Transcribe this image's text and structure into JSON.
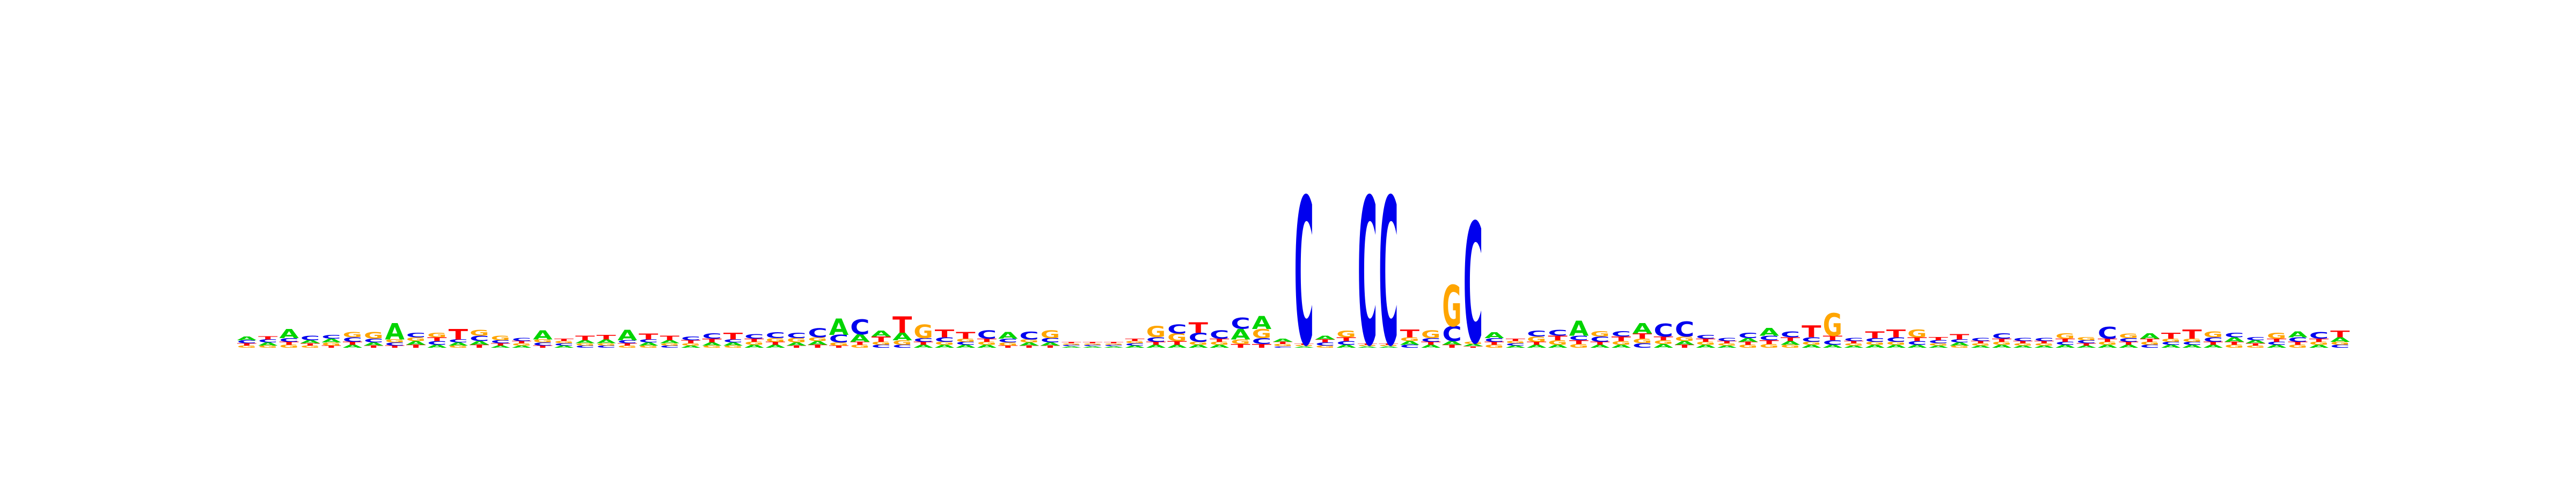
{
  "chart_data": {
    "type": "sequence-logo",
    "title": "",
    "xlabel": "",
    "ylabel": "",
    "alphabet": [
      "A",
      "C",
      "G",
      "T"
    ],
    "colors": {
      "A": "#00d400",
      "C": "#0000ee",
      "G": "#ffa500",
      "T": "#ff0000"
    },
    "ylim": [
      0,
      2
    ],
    "grid": false,
    "legend": "none",
    "max_stack_height_bits": 2.0,
    "positions": [
      {
        "A": 0.05,
        "C": 0.04,
        "G": 0.03,
        "T": 0.03
      },
      {
        "A": 0.04,
        "C": 0.04,
        "G": 0.03,
        "T": 0.04
      },
      {
        "A": 0.12,
        "C": 0.05,
        "G": 0.04,
        "T": 0.04
      },
      {
        "A": 0.04,
        "C": 0.06,
        "G": 0.03,
        "T": 0.03
      },
      {
        "A": 0.05,
        "C": 0.05,
        "G": 0.04,
        "T": 0.03
      },
      {
        "A": 0.04,
        "C": 0.06,
        "G": 0.07,
        "T": 0.04
      },
      {
        "A": 0.04,
        "C": 0.05,
        "G": 0.09,
        "T": 0.03
      },
      {
        "A": 0.22,
        "C": 0.04,
        "G": 0.04,
        "T": 0.03
      },
      {
        "A": 0.05,
        "C": 0.06,
        "G": 0.05,
        "T": 0.04
      },
      {
        "A": 0.04,
        "C": 0.05,
        "G": 0.06,
        "T": 0.05
      },
      {
        "A": 0.04,
        "C": 0.04,
        "G": 0.03,
        "T": 0.14
      },
      {
        "A": 0.05,
        "C": 0.07,
        "G": 0.08,
        "T": 0.04
      },
      {
        "A": 0.03,
        "C": 0.04,
        "G": 0.06,
        "T": 0.03
      },
      {
        "A": 0.03,
        "C": 0.04,
        "G": 0.03,
        "T": 0.03
      },
      {
        "A": 0.12,
        "C": 0.04,
        "G": 0.04,
        "T": 0.03
      },
      {
        "A": 0.03,
        "C": 0.03,
        "G": 0.03,
        "T": 0.03
      },
      {
        "A": 0.04,
        "C": 0.03,
        "G": 0.03,
        "T": 0.06
      },
      {
        "A": 0.05,
        "C": 0.03,
        "G": 0.03,
        "T": 0.06
      },
      {
        "A": 0.14,
        "C": 0.04,
        "G": 0.03,
        "T": 0.03
      },
      {
        "A": 0.04,
        "C": 0.04,
        "G": 0.03,
        "T": 0.08
      },
      {
        "A": 0.04,
        "C": 0.03,
        "G": 0.03,
        "T": 0.06
      },
      {
        "A": 0.03,
        "C": 0.05,
        "G": 0.03,
        "T": 0.04
      },
      {
        "A": 0.04,
        "C": 0.07,
        "G": 0.03,
        "T": 0.05
      },
      {
        "A": 0.04,
        "C": 0.04,
        "G": 0.03,
        "T": 0.09
      },
      {
        "A": 0.04,
        "C": 0.06,
        "G": 0.04,
        "T": 0.04
      },
      {
        "A": 0.04,
        "C": 0.08,
        "G": 0.05,
        "T": 0.04
      },
      {
        "A": 0.04,
        "C": 0.07,
        "G": 0.06,
        "T": 0.03
      },
      {
        "A": 0.05,
        "C": 0.12,
        "G": 0.05,
        "T": 0.04
      },
      {
        "A": 0.22,
        "C": 0.1,
        "G": 0.04,
        "T": 0.03
      },
      {
        "A": 0.1,
        "C": 0.2,
        "G": 0.04,
        "T": 0.04
      },
      {
        "A": 0.08,
        "C": 0.04,
        "G": 0.04,
        "T": 0.07
      },
      {
        "A": 0.1,
        "C": 0.04,
        "G": 0.06,
        "T": 0.22
      },
      {
        "A": 0.04,
        "C": 0.05,
        "G": 0.18,
        "T": 0.04
      },
      {
        "A": 0.04,
        "C": 0.06,
        "G": 0.04,
        "T": 0.1
      },
      {
        "A": 0.04,
        "C": 0.04,
        "G": 0.04,
        "T": 0.09
      },
      {
        "A": 0.04,
        "C": 0.11,
        "G": 0.04,
        "T": 0.04
      },
      {
        "A": 0.09,
        "C": 0.05,
        "G": 0.04,
        "T": 0.03
      },
      {
        "A": 0.04,
        "C": 0.1,
        "G": 0.04,
        "T": 0.03
      },
      {
        "A": 0.04,
        "C": 0.06,
        "G": 0.1,
        "T": 0.03
      },
      {
        "A": 0.02,
        "C": 0.02,
        "G": 0.02,
        "T": 0.02
      },
      {
        "A": 0.02,
        "C": 0.02,
        "G": 0.02,
        "T": 0.02
      },
      {
        "A": 0.02,
        "C": 0.02,
        "G": 0.02,
        "T": 0.02
      },
      {
        "A": 0.03,
        "C": 0.03,
        "G": 0.03,
        "T": 0.03
      },
      {
        "A": 0.04,
        "C": 0.06,
        "G": 0.15,
        "T": 0.04
      },
      {
        "A": 0.04,
        "C": 0.12,
        "G": 0.1,
        "T": 0.05
      },
      {
        "A": 0.04,
        "C": 0.12,
        "G": 0.04,
        "T": 0.14
      },
      {
        "A": 0.04,
        "C": 0.11,
        "G": 0.04,
        "T": 0.04
      },
      {
        "A": 0.14,
        "C": 0.15,
        "G": 0.06,
        "T": 0.05
      },
      {
        "A": 0.17,
        "C": 0.08,
        "G": 0.12,
        "T": 0.05
      },
      {
        "A": 0.04,
        "C": 0.02,
        "G": 0.03,
        "T": 0.03
      },
      {
        "A": 0.02,
        "C": 1.96,
        "G": 0.02,
        "T": 0.02
      },
      {
        "A": 0.05,
        "C": 0.04,
        "G": 0.03,
        "T": 0.04
      },
      {
        "A": 0.04,
        "C": 0.05,
        "G": 0.09,
        "T": 0.05
      },
      {
        "A": 0.02,
        "C": 1.96,
        "G": 0.02,
        "T": 0.02
      },
      {
        "A": 0.02,
        "C": 1.96,
        "G": 0.02,
        "T": 0.02
      },
      {
        "A": 0.05,
        "C": 0.04,
        "G": 0.05,
        "T": 0.1
      },
      {
        "A": 0.04,
        "C": 0.05,
        "G": 0.1,
        "T": 0.04
      },
      {
        "A": 0.05,
        "C": 0.2,
        "G": 0.55,
        "T": 0.04
      },
      {
        "A": 0.03,
        "C": 1.6,
        "G": 0.03,
        "T": 0.02
      },
      {
        "A": 0.08,
        "C": 0.05,
        "G": 0.04,
        "T": 0.04
      },
      {
        "A": 0.03,
        "C": 0.03,
        "G": 0.03,
        "T": 0.03
      },
      {
        "A": 0.04,
        "C": 0.08,
        "G": 0.07,
        "T": 0.04
      },
      {
        "A": 0.04,
        "C": 0.08,
        "G": 0.06,
        "T": 0.06
      },
      {
        "A": 0.2,
        "C": 0.06,
        "G": 0.05,
        "T": 0.05
      },
      {
        "A": 0.04,
        "C": 0.07,
        "G": 0.07,
        "T": 0.04
      },
      {
        "A": 0.04,
        "C": 0.07,
        "G": 0.05,
        "T": 0.06
      },
      {
        "A": 0.14,
        "C": 0.06,
        "G": 0.06,
        "T": 0.07
      },
      {
        "A": 0.05,
        "C": 0.17,
        "G": 0.05,
        "T": 0.05
      },
      {
        "A": 0.05,
        "C": 0.2,
        "G": 0.06,
        "T": 0.04
      },
      {
        "A": 0.04,
        "C": 0.05,
        "G": 0.04,
        "T": 0.04
      },
      {
        "A": 0.03,
        "C": 0.04,
        "G": 0.03,
        "T": 0.03
      },
      {
        "A": 0.05,
        "C": 0.07,
        "G": 0.04,
        "T": 0.04
      },
      {
        "A": 0.1,
        "C": 0.06,
        "G": 0.05,
        "T": 0.05
      },
      {
        "A": 0.05,
        "C": 0.08,
        "G": 0.04,
        "T": 0.05
      },
      {
        "A": 0.04,
        "C": 0.06,
        "G": 0.04,
        "T": 0.16
      },
      {
        "A": 0.04,
        "C": 0.06,
        "G": 0.3,
        "T": 0.06
      },
      {
        "A": 0.03,
        "C": 0.04,
        "G": 0.03,
        "T": 0.03
      },
      {
        "A": 0.04,
        "C": 0.05,
        "G": 0.04,
        "T": 0.09
      },
      {
        "A": 0.04,
        "C": 0.06,
        "G": 0.04,
        "T": 0.1
      },
      {
        "A": 0.04,
        "C": 0.05,
        "G": 0.1,
        "T": 0.05
      },
      {
        "A": 0.03,
        "C": 0.04,
        "G": 0.03,
        "T": 0.04
      },
      {
        "A": 0.04,
        "C": 0.04,
        "G": 0.03,
        "T": 0.07
      },
      {
        "A": 0.03,
        "C": 0.04,
        "G": 0.03,
        "T": 0.03
      },
      {
        "A": 0.04,
        "C": 0.07,
        "G": 0.04,
        "T": 0.04
      },
      {
        "A": 0.03,
        "C": 0.04,
        "G": 0.03,
        "T": 0.03
      },
      {
        "A": 0.03,
        "C": 0.04,
        "G": 0.03,
        "T": 0.03
      },
      {
        "A": 0.04,
        "C": 0.04,
        "G": 0.07,
        "T": 0.04
      },
      {
        "A": 0.03,
        "C": 0.04,
        "G": 0.04,
        "T": 0.03
      },
      {
        "A": 0.04,
        "C": 0.16,
        "G": 0.04,
        "T": 0.04
      },
      {
        "A": 0.04,
        "C": 0.05,
        "G": 0.06,
        "T": 0.04
      },
      {
        "A": 0.07,
        "C": 0.04,
        "G": 0.04,
        "T": 0.04
      },
      {
        "A": 0.04,
        "C": 0.04,
        "G": 0.04,
        "T": 0.08
      },
      {
        "A": 0.04,
        "C": 0.04,
        "G": 0.04,
        "T": 0.12
      },
      {
        "A": 0.04,
        "C": 0.06,
        "G": 0.08,
        "T": 0.04
      },
      {
        "A": 0.06,
        "C": 0.06,
        "G": 0.04,
        "T": 0.04
      },
      {
        "A": 0.04,
        "C": 0.04,
        "G": 0.03,
        "T": 0.03
      },
      {
        "A": 0.04,
        "C": 0.04,
        "G": 0.08,
        "T": 0.04
      },
      {
        "A": 0.08,
        "C": 0.06,
        "G": 0.04,
        "T": 0.04
      },
      {
        "A": 0.04,
        "C": 0.09,
        "G": 0.04,
        "T": 0.04
      },
      {
        "A": 0.06,
        "C": 0.04,
        "G": 0.04,
        "T": 0.09
      }
    ]
  }
}
